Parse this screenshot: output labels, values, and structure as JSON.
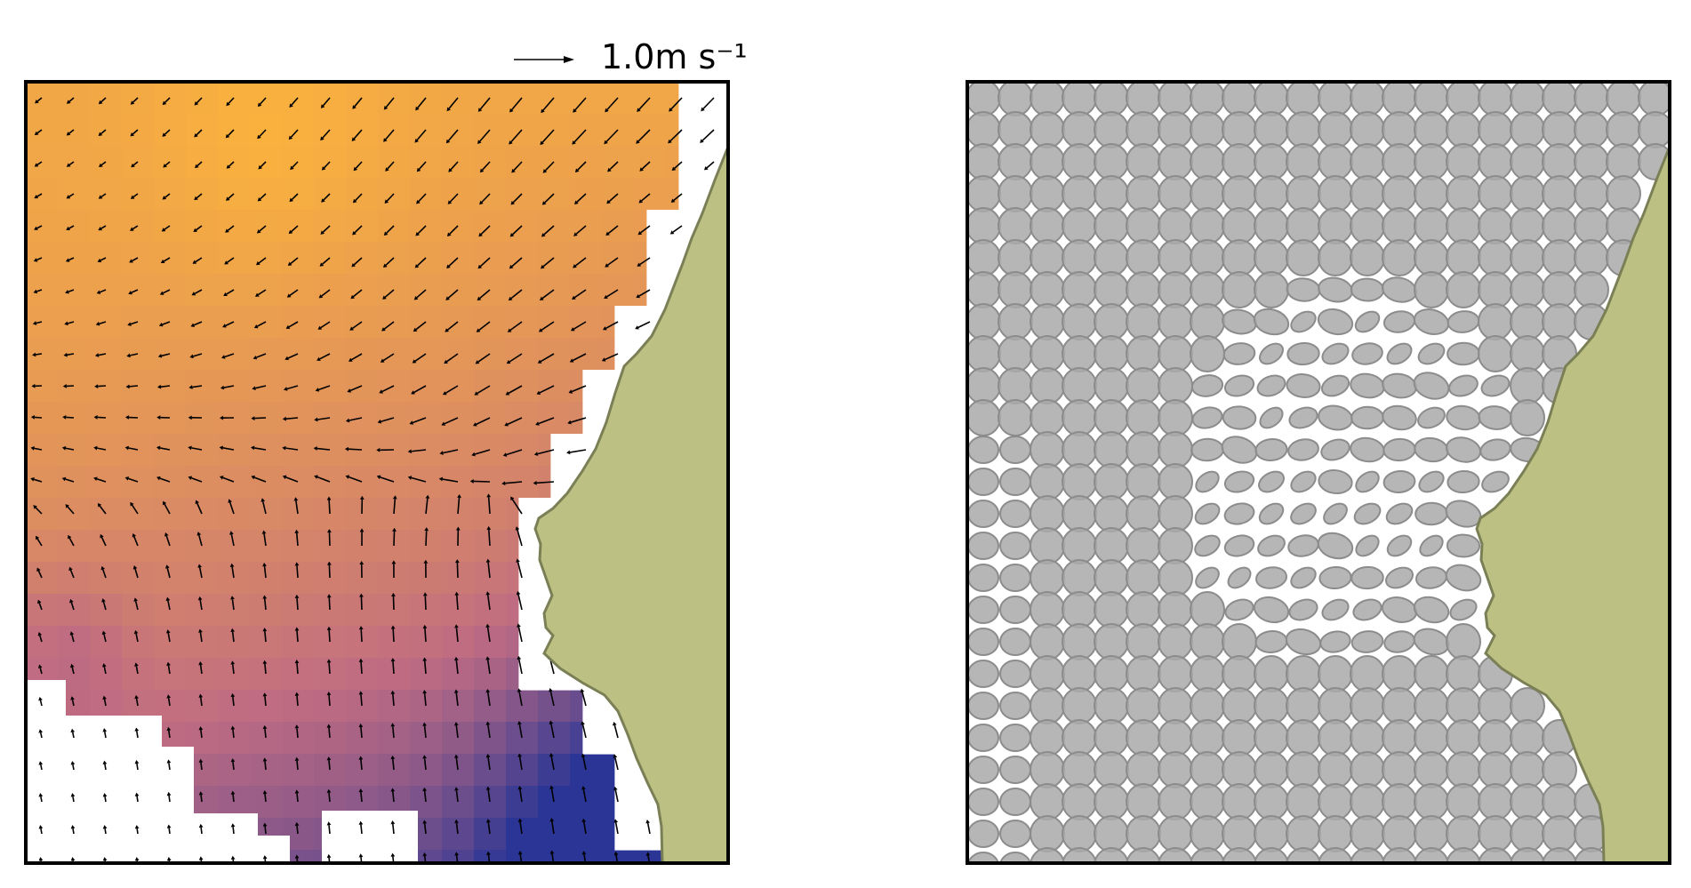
{
  "scale_key": {
    "label": "1.0m s⁻¹"
  },
  "colors": {
    "land": "#bcc083",
    "land_edge": "#7b7f55",
    "ellipse_fill": "#a9a9a9",
    "ellipse_edge": "#8c8c8c",
    "frame": "#000000",
    "arrow": "#000000",
    "speed_low": "#2a3596",
    "speed_mid": "#c06c82",
    "speed_high": "#fbb23c"
  }
}
